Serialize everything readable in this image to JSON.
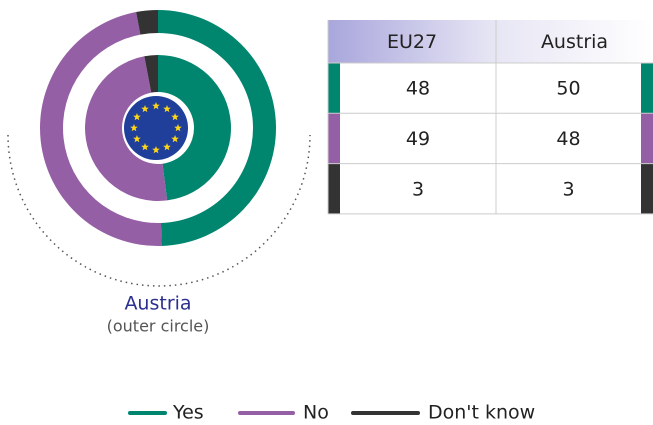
{
  "chart_data": {
    "type": "donut",
    "categories": [
      "Yes",
      "No",
      "Don't know"
    ],
    "colors": [
      "#00856f",
      "#955fa5",
      "#333333"
    ],
    "series": [
      {
        "name": "EU27",
        "values": [
          48,
          49,
          3
        ]
      },
      {
        "name": "Austria",
        "values": [
          50,
          48,
          3
        ]
      }
    ],
    "outer_note": "(outer circle)"
  }
}
